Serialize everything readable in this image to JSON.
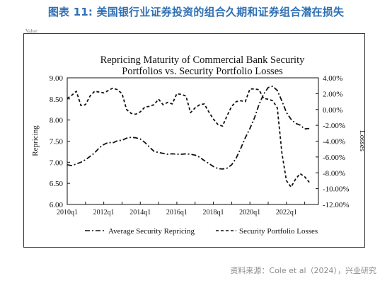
{
  "header": {
    "title": "图表 11: 美国银行业证券投资的组合久期和证券组合潜在损失",
    "clip_text": "Value:"
  },
  "source": "资料来源：Cole et al（2024），兴业研究",
  "chart_data": {
    "type": "line",
    "title_line1": "Repricing Maturity of Commercial Bank Security",
    "title_line2": "Portfolios  vs. Security Portfolio Losses",
    "ylabel_left": "Repricing",
    "ylabel_right": "Losses",
    "xlim": [
      2010.0,
      2023.75
    ],
    "ylim_left": [
      6.0,
      9.0
    ],
    "ylim_right": [
      -12,
      4
    ],
    "left_ticks": [
      "6.00",
      "6.50",
      "7.00",
      "7.50",
      "8.00",
      "8.50",
      "9.00"
    ],
    "right_ticks": [
      "-12.00%",
      "-10.00%",
      "-8.00%",
      "-6.00%",
      "-4.00%",
      "-2.00%",
      "0.00%",
      "2.00%",
      "4.00%"
    ],
    "x_ticks": [
      "2010q1",
      "2012q1",
      "2014q1",
      "2016q1",
      "2018q1",
      "2020q1",
      "2022q1"
    ],
    "legend_position": "bottom",
    "series": [
      {
        "name": "Average Security Repricing",
        "axis": "left",
        "style": "dash-dot",
        "x": [
          "2010q1",
          "2010q2",
          "2010q3",
          "2010q4",
          "2011q1",
          "2011q2",
          "2011q3",
          "2011q4",
          "2012q1",
          "2012q2",
          "2012q3",
          "2012q4",
          "2013q1",
          "2013q2",
          "2013q3",
          "2013q4",
          "2014q1",
          "2014q2",
          "2014q3",
          "2014q4",
          "2015q1",
          "2015q2",
          "2015q3",
          "2015q4",
          "2016q1",
          "2016q2",
          "2016q3",
          "2016q4",
          "2017q1",
          "2017q2",
          "2017q3",
          "2017q4",
          "2018q1",
          "2018q2",
          "2018q3",
          "2018q4",
          "2019q1",
          "2019q2",
          "2019q3",
          "2019q4",
          "2020q1",
          "2020q2",
          "2020q3",
          "2020q4",
          "2021q1",
          "2021q2",
          "2021q3",
          "2021q4",
          "2022q1",
          "2022q2",
          "2022q3",
          "2022q4",
          "2023q1",
          "2023q2"
        ],
        "values": [
          6.94,
          6.92,
          6.96,
          7.0,
          7.06,
          7.14,
          7.22,
          7.34,
          7.42,
          7.47,
          7.46,
          7.51,
          7.52,
          7.57,
          7.59,
          7.58,
          7.55,
          7.47,
          7.36,
          7.26,
          7.23,
          7.21,
          7.19,
          7.2,
          7.19,
          7.19,
          7.2,
          7.19,
          7.17,
          7.12,
          7.04,
          6.97,
          6.9,
          6.85,
          6.84,
          6.86,
          6.94,
          7.1,
          7.33,
          7.58,
          7.8,
          8.05,
          8.37,
          8.61,
          8.77,
          8.8,
          8.7,
          8.45,
          8.18,
          8.02,
          7.92,
          7.88,
          7.79,
          7.8
        ]
      },
      {
        "name": "Security Portfolio Losses",
        "axis": "right",
        "style": "dashed",
        "x": [
          "2010q1",
          "2010q2",
          "2010q3",
          "2010q4",
          "2011q1",
          "2011q2",
          "2011q3",
          "2011q4",
          "2012q1",
          "2012q2",
          "2012q3",
          "2012q4",
          "2013q1",
          "2013q2",
          "2013q3",
          "2013q4",
          "2014q1",
          "2014q2",
          "2014q3",
          "2014q4",
          "2015q1",
          "2015q2",
          "2015q3",
          "2015q4",
          "2016q1",
          "2016q2",
          "2016q3",
          "2016q4",
          "2017q1",
          "2017q2",
          "2017q3",
          "2017q4",
          "2018q1",
          "2018q2",
          "2018q3",
          "2018q4",
          "2019q1",
          "2019q2",
          "2019q3",
          "2019q4",
          "2020q1",
          "2020q2",
          "2020q3",
          "2020q4",
          "2021q1",
          "2021q2",
          "2021q3",
          "2021q4",
          "2022q1",
          "2022q2",
          "2022q3",
          "2022q4",
          "2023q1",
          "2023q2"
        ],
        "values": [
          1.4,
          1.8,
          2.3,
          0.5,
          0.6,
          1.7,
          2.3,
          2.2,
          2.1,
          2.4,
          2.7,
          2.5,
          2.0,
          0.0,
          -0.5,
          -0.6,
          -0.3,
          0.3,
          0.4,
          0.6,
          1.3,
          0.6,
          0.9,
          0.7,
          2.0,
          1.9,
          1.7,
          -0.4,
          0.2,
          0.6,
          0.7,
          -0.3,
          -1.2,
          -1.9,
          -2.1,
          -0.8,
          0.4,
          1.0,
          1.1,
          1.0,
          2.6,
          2.6,
          2.5,
          1.4,
          1.3,
          1.1,
          0.2,
          -5.5,
          -9.0,
          -9.8,
          -8.8,
          -8.1,
          -8.5,
          -9.2
        ]
      }
    ]
  }
}
